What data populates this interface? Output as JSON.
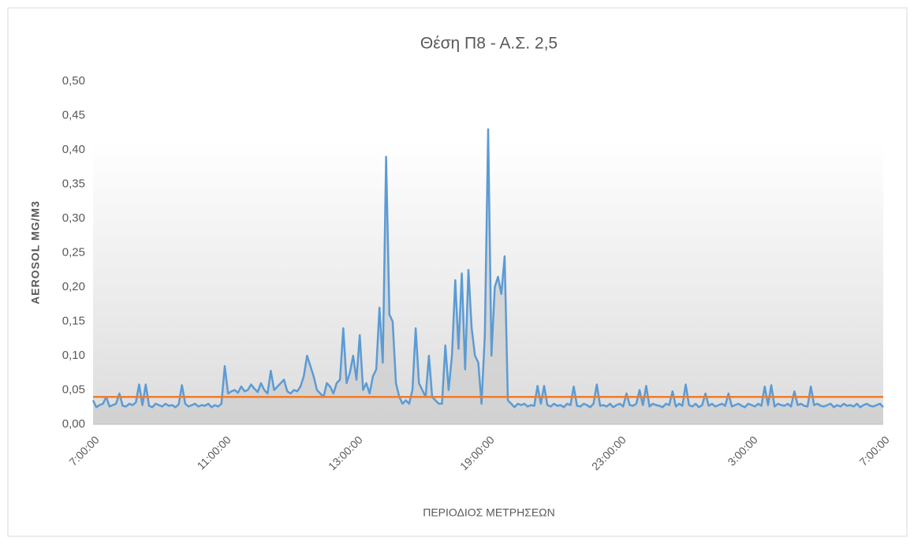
{
  "chart_data": {
    "type": "line",
    "title": "Θέση Π8 - Α.Σ. 2,5",
    "y_label": "AEROSOL MG/M3",
    "x_label": "ΠΕΡΙΟΔΙΟΣ ΜΕΤΡΗΣΕΩΝ",
    "categories": [
      "7:00:00",
      null,
      null,
      null,
      null,
      null,
      null,
      null,
      null,
      null,
      null,
      null,
      null,
      null,
      null,
      null,
      null,
      null,
      null,
      null,
      null,
      null,
      null,
      null,
      null,
      null,
      null,
      null,
      null,
      null,
      null,
      null,
      null,
      null,
      null,
      null,
      null,
      null,
      null,
      null,
      "11:00:00",
      null,
      null,
      null,
      null,
      null,
      null,
      null,
      null,
      null,
      null,
      null,
      null,
      null,
      null,
      null,
      null,
      null,
      null,
      null,
      null,
      null,
      null,
      null,
      null,
      null,
      null,
      null,
      null,
      null,
      null,
      null,
      null,
      null,
      null,
      null,
      null,
      null,
      null,
      null,
      "13:00:00",
      null,
      null,
      null,
      null,
      null,
      null,
      null,
      null,
      null,
      null,
      null,
      null,
      null,
      null,
      null,
      null,
      null,
      null,
      null,
      null,
      null,
      null,
      null,
      null,
      null,
      null,
      null,
      null,
      null,
      null,
      null,
      null,
      null,
      null,
      null,
      null,
      null,
      null,
      null,
      "19:00:00",
      null,
      null,
      null,
      null,
      null,
      null,
      null,
      null,
      null,
      null,
      null,
      null,
      null,
      null,
      null,
      null,
      null,
      null,
      null,
      null,
      null,
      null,
      null,
      null,
      null,
      null,
      null,
      null,
      null,
      null,
      null,
      null,
      null,
      null,
      null,
      null,
      null,
      null,
      null,
      "23:00:00",
      null,
      null,
      null,
      null,
      null,
      null,
      null,
      null,
      null,
      null,
      null,
      null,
      null,
      null,
      null,
      null,
      null,
      null,
      null,
      null,
      null,
      null,
      null,
      null,
      null,
      null,
      null,
      null,
      null,
      null,
      null,
      null,
      null,
      null,
      null,
      null,
      null,
      null,
      null,
      "3:00:00",
      null,
      null,
      null,
      null,
      null,
      null,
      null,
      null,
      null,
      null,
      null,
      null,
      null,
      null,
      null,
      null,
      null,
      null,
      null,
      null,
      null,
      null,
      null,
      null,
      null,
      null,
      null,
      null,
      null,
      null,
      null,
      null,
      null,
      null,
      null,
      null,
      null,
      null,
      null,
      "7:00:00"
    ],
    "series": [
      {
        "color": "#5b9bd5",
        "area_color": "#d0d0d0",
        "values": [
          0.035,
          0.025,
          0.028,
          0.03,
          0.04,
          0.026,
          0.028,
          0.03,
          0.045,
          0.027,
          0.026,
          0.03,
          0.028,
          0.032,
          0.058,
          0.028,
          0.058,
          0.027,
          0.025,
          0.03,
          0.028,
          0.026,
          0.03,
          0.027,
          0.028,
          0.025,
          0.029,
          0.057,
          0.03,
          0.026,
          0.028,
          0.03,
          0.026,
          0.028,
          0.027,
          0.03,
          0.025,
          0.028,
          0.026,
          0.03,
          0.085,
          0.045,
          0.048,
          0.05,
          0.046,
          0.055,
          0.048,
          0.05,
          0.058,
          0.052,
          0.047,
          0.06,
          0.05,
          0.045,
          0.078,
          0.05,
          0.055,
          0.06,
          0.065,
          0.048,
          0.045,
          0.05,
          0.048,
          0.055,
          0.07,
          0.1,
          0.085,
          0.07,
          0.05,
          0.045,
          0.04,
          0.06,
          0.055,
          0.045,
          0.06,
          0.065,
          0.14,
          0.06,
          0.075,
          0.1,
          0.065,
          0.13,
          0.05,
          0.06,
          0.045,
          0.07,
          0.08,
          0.17,
          0.09,
          0.39,
          0.16,
          0.15,
          0.06,
          0.04,
          0.03,
          0.035,
          0.03,
          0.05,
          0.14,
          0.06,
          0.05,
          0.04,
          0.1,
          0.04,
          0.035,
          0.03,
          0.03,
          0.115,
          0.05,
          0.1,
          0.21,
          0.11,
          0.22,
          0.08,
          0.225,
          0.14,
          0.1,
          0.09,
          0.03,
          0.13,
          0.43,
          0.1,
          0.2,
          0.215,
          0.19,
          0.245,
          0.035,
          0.03,
          0.025,
          0.03,
          0.028,
          0.03,
          0.026,
          0.028,
          0.027,
          0.056,
          0.03,
          0.056,
          0.028,
          0.026,
          0.03,
          0.027,
          0.028,
          0.025,
          0.03,
          0.028,
          0.055,
          0.027,
          0.026,
          0.03,
          0.028,
          0.025,
          0.03,
          0.058,
          0.027,
          0.028,
          0.026,
          0.03,
          0.025,
          0.028,
          0.03,
          0.026,
          0.045,
          0.028,
          0.027,
          0.03,
          0.05,
          0.028,
          0.056,
          0.026,
          0.03,
          0.028,
          0.027,
          0.025,
          0.03,
          0.028,
          0.048,
          0.026,
          0.03,
          0.027,
          0.058,
          0.028,
          0.026,
          0.03,
          0.025,
          0.028,
          0.045,
          0.027,
          0.03,
          0.026,
          0.028,
          0.03,
          0.027,
          0.045,
          0.026,
          0.028,
          0.03,
          0.027,
          0.025,
          0.03,
          0.028,
          0.026,
          0.03,
          0.027,
          0.055,
          0.028,
          0.057,
          0.026,
          0.03,
          0.028,
          0.027,
          0.03,
          0.026,
          0.048,
          0.028,
          0.03,
          0.027,
          0.026,
          0.055,
          0.028,
          0.03,
          0.027,
          0.026,
          0.028,
          0.03,
          0.025,
          0.028,
          0.026,
          0.03,
          0.027,
          0.028,
          0.026,
          0.03,
          0.025,
          0.028,
          0.03,
          0.027,
          0.026,
          0.028,
          0.03,
          0.025
        ]
      }
    ],
    "threshold": {
      "value": 0.04,
      "color": "#ed7d31"
    },
    "ylim": [
      0,
      0.5
    ],
    "yticks": [
      {
        "value": 0,
        "label": "0,00"
      },
      {
        "value": 0.05,
        "label": "0,05"
      },
      {
        "value": 0.1,
        "label": "0,10"
      },
      {
        "value": 0.15,
        "label": "0,15"
      },
      {
        "value": 0.2,
        "label": "0,20"
      },
      {
        "value": 0.25,
        "label": "0,25"
      },
      {
        "value": 0.3,
        "label": "0,30"
      },
      {
        "value": 0.35,
        "label": "0,35"
      },
      {
        "value": 0.4,
        "label": "0,40"
      },
      {
        "value": 0.45,
        "label": "0,45"
      },
      {
        "value": 0.5,
        "label": "0,50"
      }
    ],
    "grid": false
  }
}
